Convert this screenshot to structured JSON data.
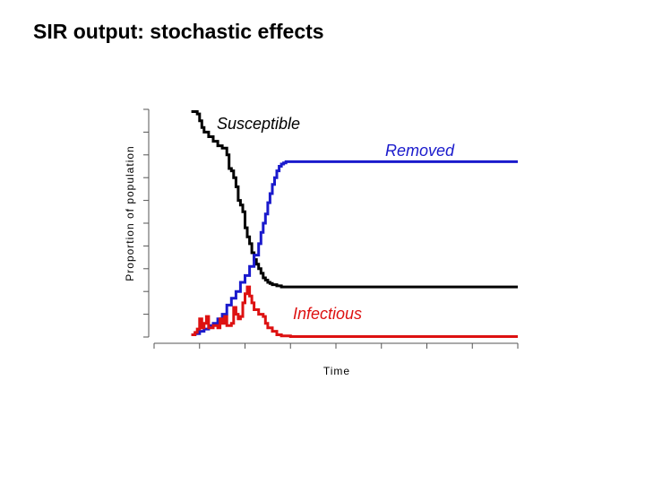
{
  "slide": {
    "title": "SIR output: stochastic effects"
  },
  "chart_data": {
    "type": "line",
    "title": "",
    "xlabel": "Time",
    "ylabel": "Proportion of population",
    "xlim": [
      0,
      8
    ],
    "ylim": [
      0,
      10
    ],
    "grid": false,
    "tick_labels": false,
    "x_ticks": [
      0,
      1,
      2,
      3,
      4,
      5,
      6,
      7,
      8
    ],
    "y_ticks": [
      0,
      1,
      2,
      3,
      4,
      5,
      6,
      7,
      8,
      9,
      10
    ],
    "series": [
      {
        "name": "Susceptible",
        "color": "#000000",
        "x": [
          0.82,
          0.95,
          1.0,
          1.05,
          1.1,
          1.2,
          1.3,
          1.4,
          1.5,
          1.6,
          1.65,
          1.7,
          1.75,
          1.8,
          1.85,
          1.9,
          1.95,
          2.0,
          2.05,
          2.1,
          2.15,
          2.2,
          2.25,
          2.3,
          2.35,
          2.4,
          2.45,
          2.5,
          2.55,
          2.6,
          2.7,
          2.8,
          3.0,
          8.0
        ],
        "y": [
          9.9,
          9.8,
          9.5,
          9.2,
          9.0,
          8.8,
          8.6,
          8.4,
          8.3,
          8.0,
          7.4,
          7.3,
          7.0,
          6.6,
          6.0,
          5.8,
          5.5,
          4.8,
          4.4,
          4.1,
          3.7,
          3.4,
          3.2,
          3.0,
          2.8,
          2.6,
          2.5,
          2.4,
          2.35,
          2.3,
          2.25,
          2.2,
          2.2,
          2.2
        ]
      },
      {
        "name": "Removed",
        "color": "#1a1acc",
        "x": [
          0.82,
          0.9,
          1.0,
          1.1,
          1.2,
          1.3,
          1.4,
          1.5,
          1.6,
          1.7,
          1.8,
          1.9,
          2.0,
          2.1,
          2.2,
          2.3,
          2.35,
          2.4,
          2.45,
          2.5,
          2.55,
          2.6,
          2.65,
          2.7,
          2.75,
          2.8,
          2.85,
          2.9,
          3.0,
          8.0
        ],
        "y": [
          0.1,
          0.15,
          0.25,
          0.35,
          0.5,
          0.6,
          0.8,
          1.0,
          1.4,
          1.7,
          2.0,
          2.4,
          2.7,
          3.1,
          3.6,
          4.1,
          4.6,
          5.0,
          5.4,
          5.9,
          6.3,
          6.7,
          7.0,
          7.3,
          7.5,
          7.6,
          7.65,
          7.7,
          7.7,
          7.7
        ]
      },
      {
        "name": "Infectious",
        "color": "#dd1111",
        "x": [
          0.82,
          0.9,
          0.95,
          1.0,
          1.05,
          1.1,
          1.15,
          1.2,
          1.3,
          1.4,
          1.45,
          1.5,
          1.55,
          1.6,
          1.7,
          1.75,
          1.8,
          1.85,
          1.9,
          1.95,
          2.0,
          2.05,
          2.1,
          2.15,
          2.2,
          2.3,
          2.4,
          2.45,
          2.5,
          2.6,
          2.7,
          2.8,
          3.0,
          8.0
        ],
        "y": [
          0.1,
          0.2,
          0.35,
          0.8,
          0.4,
          0.6,
          0.9,
          0.4,
          0.5,
          0.4,
          0.8,
          0.6,
          0.9,
          0.5,
          0.6,
          1.3,
          1.0,
          0.8,
          0.9,
          1.5,
          1.9,
          2.2,
          1.8,
          1.5,
          1.2,
          1.0,
          0.9,
          0.6,
          0.4,
          0.25,
          0.1,
          0.05,
          0.02,
          0.02
        ]
      }
    ]
  }
}
